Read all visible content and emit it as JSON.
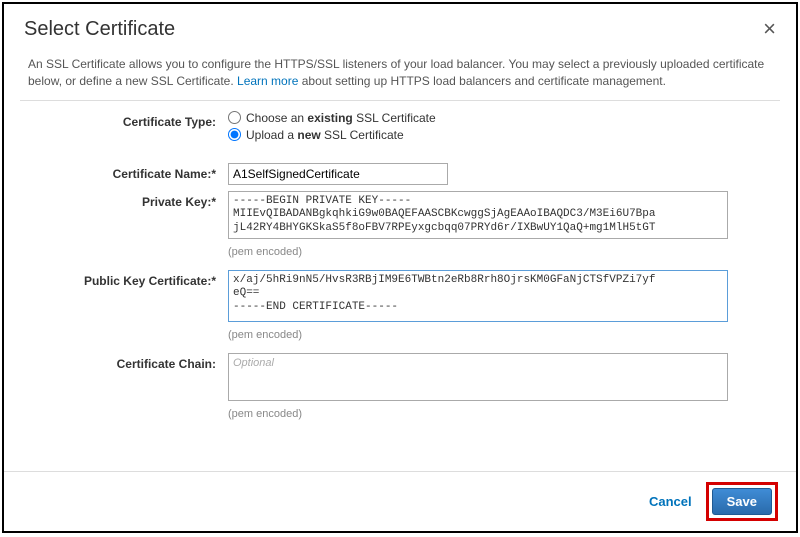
{
  "modal": {
    "title": "Select Certificate",
    "close_icon": "×",
    "description_pre": "An SSL Certificate allows you to configure the HTTPS/SSL listeners of your load balancer. You may select a previously uploaded certificate below, or define a new SSL Certificate. ",
    "learn_more": "Learn more",
    "description_post": " about setting up HTTPS load balancers and certificate management."
  },
  "form": {
    "cert_type_label": "Certificate Type:",
    "radio_existing_pre": "Choose an ",
    "radio_existing_bold": "existing",
    "radio_existing_post": " SSL Certificate",
    "radio_upload_pre": "Upload a ",
    "radio_upload_bold": "new",
    "radio_upload_post": " SSL Certificate",
    "radio_selected": "upload",
    "cert_name_label": "Certificate Name:*",
    "cert_name_value": "A1SelfSignedCertificate",
    "private_key_label": "Private Key:*",
    "private_key_value": "-----BEGIN PRIVATE KEY-----\nMIIEvQIBADANBgkqhkiG9w0BAQEFAASCBKcwggSjAgEAAoIBAQDC3/M3Ei6U7Bpa\njL42RY4BHYGKSkaS5f8oFBV7RPEyxgcbqq07PRYd6r/IXBwUY1QaQ+mg1MlH5tGT",
    "private_key_hint": "(pem encoded)",
    "public_key_label": "Public Key Certificate:*",
    "public_key_value": "x/aj/5hRi9nN5/HvsR3RBjIM9E6TWBtn2eRb8Rrh8OjrsKM0GFaNjCTSfVPZi7yf\neQ==\n-----END CERTIFICATE-----",
    "public_key_hint": "(pem encoded)",
    "cert_chain_label": "Certificate Chain:",
    "cert_chain_placeholder": "Optional",
    "cert_chain_hint": "(pem encoded)"
  },
  "footer": {
    "cancel": "Cancel",
    "save": "Save"
  },
  "styling": {
    "modal_border": "#000000",
    "title_color": "#333333",
    "text_color": "#555555",
    "link_color": "#0073bb",
    "divider_color": "#dddddd",
    "input_border": "#aaaaaa",
    "focus_border": "#5b9dd9",
    "hint_color": "#888888",
    "save_bg_top": "#3f8cd6",
    "save_bg_bottom": "#2a6bab",
    "save_border": "#1f5a93",
    "highlight_border": "#d40000",
    "font_body": "Arial",
    "font_mono": "Courier New",
    "title_fontsize": 20,
    "body_fontsize": 12,
    "hint_fontsize": 11
  }
}
